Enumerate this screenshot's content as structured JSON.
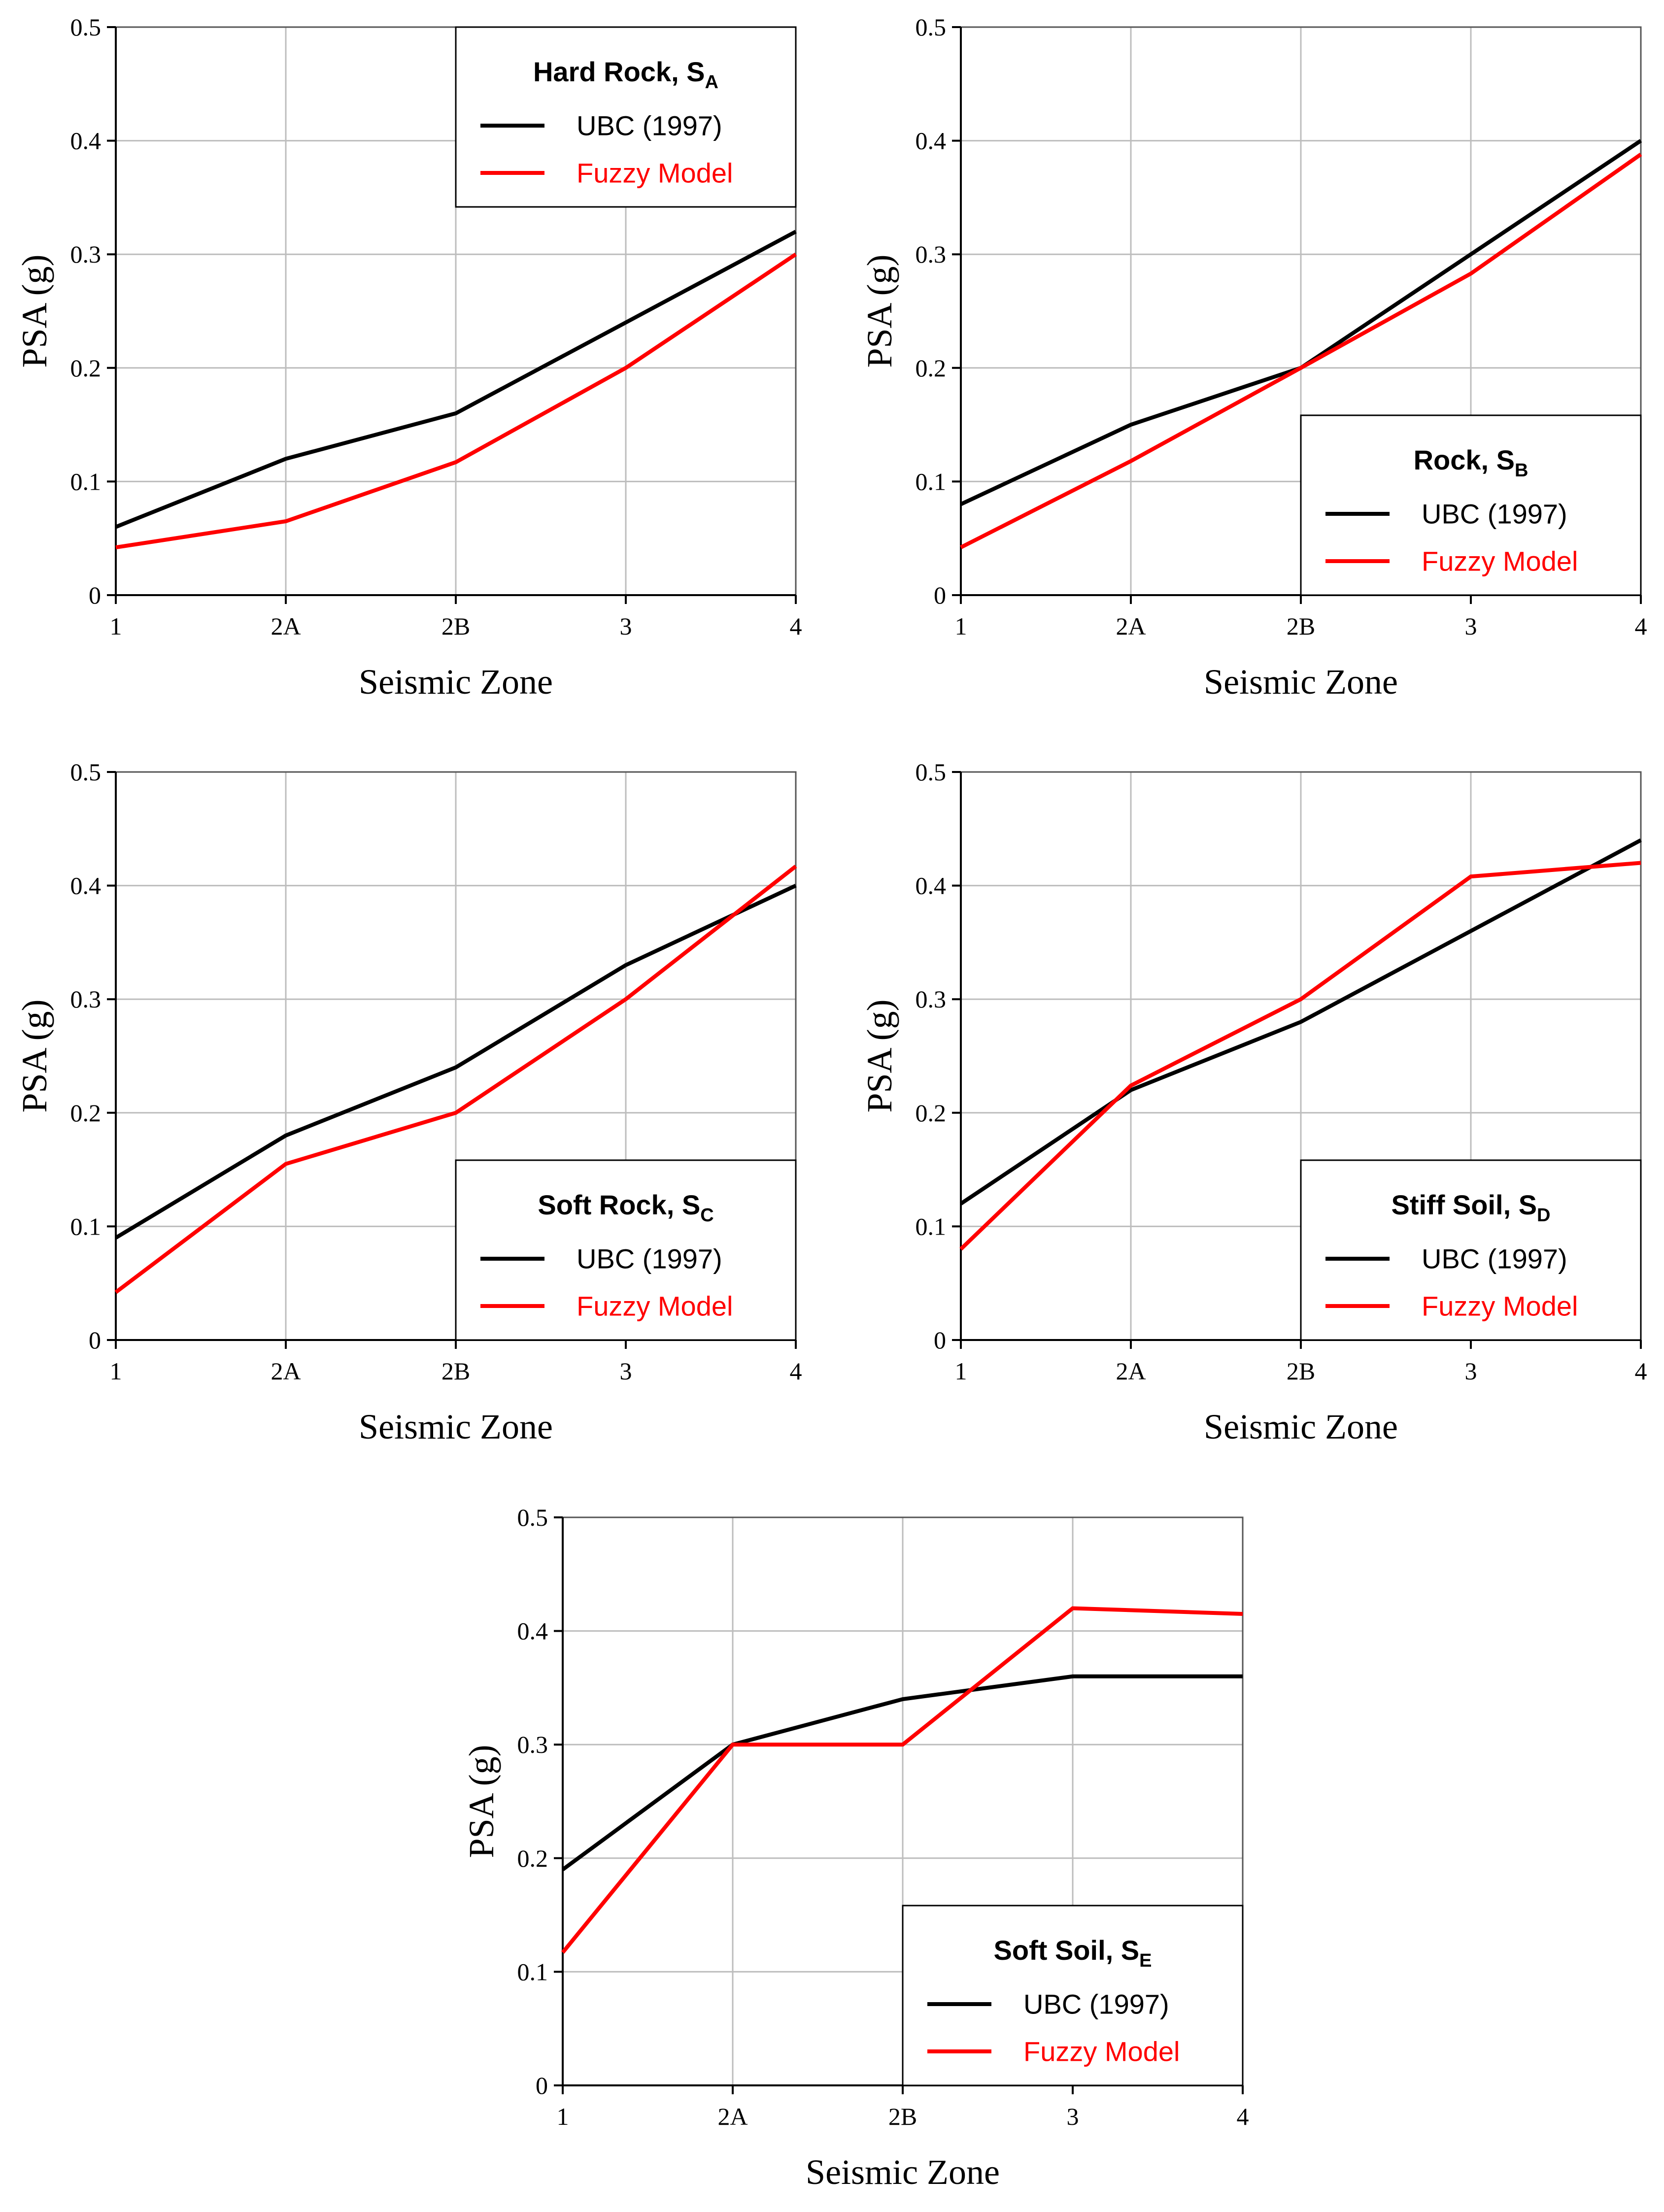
{
  "chart_data": [
    {
      "type": "line",
      "title": "",
      "xlabel": "Seismic Zone",
      "ylabel": "PSA (g)",
      "categories": [
        "1",
        "2A",
        "2B",
        "3",
        "4"
      ],
      "yticks": [
        "0",
        "0.1",
        "0.2",
        "0.3",
        "0.4",
        "0.5"
      ],
      "ylim": [
        0,
        0.5
      ],
      "grid": true,
      "legend": {
        "title_main": "Hard Rock, S",
        "title_sub": "A",
        "placement": "top-right"
      },
      "series": [
        {
          "name": "UBC (1997)",
          "color": "#000000",
          "values": [
            0.06,
            0.12,
            0.16,
            0.24,
            0.32
          ]
        },
        {
          "name": "Fuzzy Model",
          "color": "#ff0000",
          "values": [
            0.042,
            0.065,
            0.117,
            0.2,
            0.3
          ]
        }
      ]
    },
    {
      "type": "line",
      "title": "",
      "xlabel": "Seismic Zone",
      "ylabel": "PSA (g)",
      "categories": [
        "1",
        "2A",
        "2B",
        "3",
        "4"
      ],
      "yticks": [
        "0",
        "0.1",
        "0.2",
        "0.3",
        "0.4",
        "0.5"
      ],
      "ylim": [
        0,
        0.5
      ],
      "grid": true,
      "legend": {
        "title_main": "Rock, S",
        "title_sub": "B",
        "placement": "bottom-right"
      },
      "series": [
        {
          "name": "UBC (1997)",
          "color": "#000000",
          "values": [
            0.08,
            0.15,
            0.2,
            0.3,
            0.4
          ]
        },
        {
          "name": "Fuzzy Model",
          "color": "#ff0000",
          "values": [
            0.042,
            0.118,
            0.2,
            0.283,
            0.388
          ]
        }
      ]
    },
    {
      "type": "line",
      "title": "",
      "xlabel": "Seismic Zone",
      "ylabel": "PSA (g)",
      "categories": [
        "1",
        "2A",
        "2B",
        "3",
        "4"
      ],
      "yticks": [
        "0",
        "0.1",
        "0.2",
        "0.3",
        "0.4",
        "0.5"
      ],
      "ylim": [
        0,
        0.5
      ],
      "grid": true,
      "legend": {
        "title_main": "Soft Rock, S",
        "title_sub": "C",
        "placement": "bottom-right"
      },
      "series": [
        {
          "name": "UBC (1997)",
          "color": "#000000",
          "values": [
            0.09,
            0.18,
            0.24,
            0.33,
            0.4
          ]
        },
        {
          "name": "Fuzzy Model",
          "color": "#ff0000",
          "values": [
            0.042,
            0.155,
            0.2,
            0.3,
            0.417
          ]
        }
      ]
    },
    {
      "type": "line",
      "title": "",
      "xlabel": "Seismic Zone",
      "ylabel": "PSA (g)",
      "categories": [
        "1",
        "2A",
        "2B",
        "3",
        "4"
      ],
      "yticks": [
        "0",
        "0.1",
        "0.2",
        "0.3",
        "0.4",
        "0.5"
      ],
      "ylim": [
        0,
        0.5
      ],
      "grid": true,
      "legend": {
        "title_main": "Stiff Soil, S",
        "title_sub": "D",
        "placement": "bottom-right"
      },
      "series": [
        {
          "name": "UBC (1997)",
          "color": "#000000",
          "values": [
            0.12,
            0.22,
            0.28,
            0.36,
            0.44
          ]
        },
        {
          "name": "Fuzzy Model",
          "color": "#ff0000",
          "values": [
            0.08,
            0.224,
            0.3,
            0.408,
            0.42
          ]
        }
      ]
    },
    {
      "type": "line",
      "title": "",
      "xlabel": "Seismic Zone",
      "ylabel": "PSA (g)",
      "categories": [
        "1",
        "2A",
        "2B",
        "3",
        "4"
      ],
      "yticks": [
        "0",
        "0.1",
        "0.2",
        "0.3",
        "0.4",
        "0.5"
      ],
      "ylim": [
        0,
        0.5
      ],
      "grid": true,
      "legend": {
        "title_main": "Soft Soil, S",
        "title_sub": "E",
        "placement": "bottom-right"
      },
      "series": [
        {
          "name": "UBC (1997)",
          "color": "#000000",
          "values": [
            0.19,
            0.3,
            0.34,
            0.36,
            0.36
          ]
        },
        {
          "name": "Fuzzy Model",
          "color": "#ff0000",
          "values": [
            0.117,
            0.3,
            0.3,
            0.42,
            0.415
          ]
        }
      ]
    }
  ]
}
